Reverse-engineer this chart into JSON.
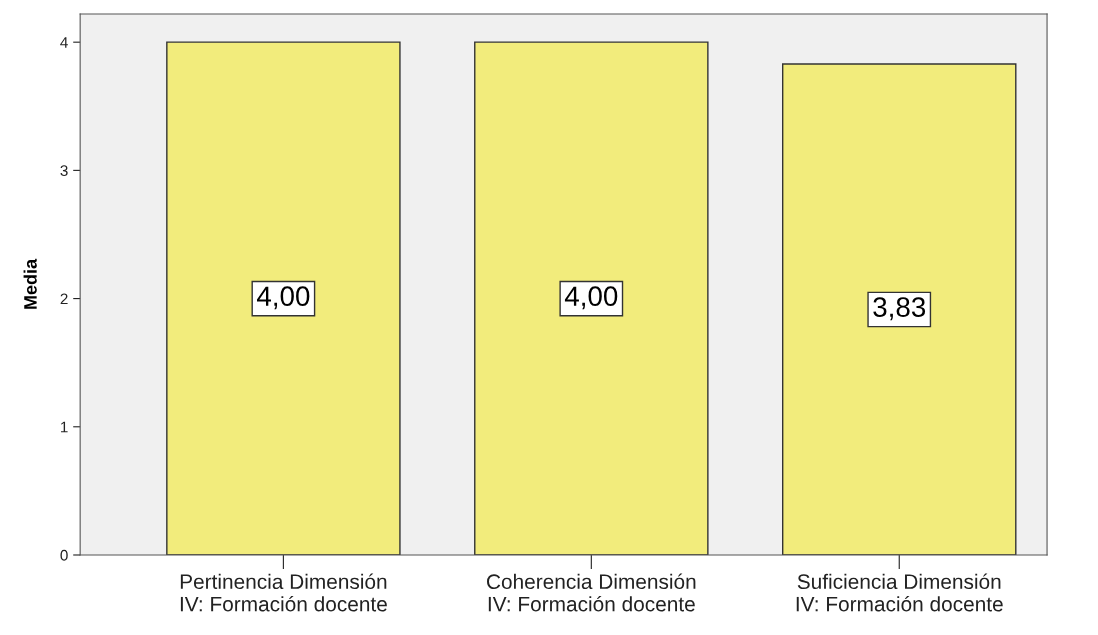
{
  "chart_data": {
    "type": "bar",
    "ylabel": "Media",
    "categories": [
      "Pertinencia Dimensión\nIV: Formación docente",
      "Coherencia Dimensión\nIV: Formación docente",
      "Suficiencia Dimensión\nIV: Formación docente"
    ],
    "values": [
      4.0,
      4.0,
      3.83
    ],
    "value_labels": [
      "4,00",
      "4,00",
      "3,83"
    ],
    "color": "#f2ec7c",
    "ylim": [
      0,
      4.22
    ],
    "yticks": [
      0,
      1,
      2,
      3,
      4
    ],
    "grid": false
  }
}
